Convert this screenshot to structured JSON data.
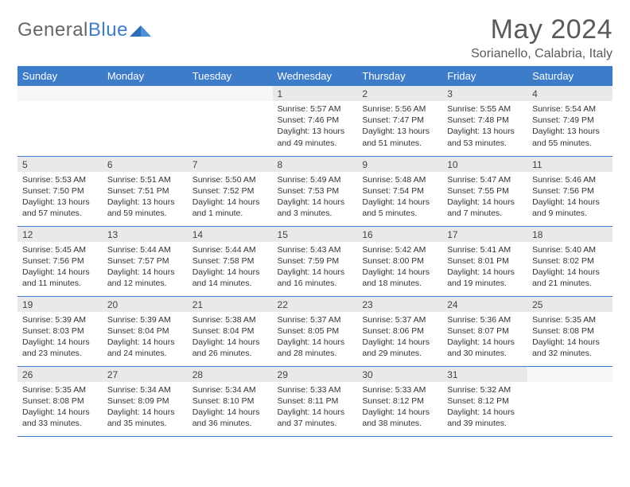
{
  "logo": {
    "text_gray": "General",
    "text_blue": "Blue"
  },
  "title": "May 2024",
  "location": "Sorianello, Calabria, Italy",
  "colors": {
    "header_bg": "#3d7cc9",
    "header_text": "#ffffff",
    "daynum_bg": "#e8e9ea",
    "row_border": "#3d7cc9",
    "body_text": "#333333",
    "title_text": "#5a5a5a"
  },
  "weekdays": [
    "Sunday",
    "Monday",
    "Tuesday",
    "Wednesday",
    "Thursday",
    "Friday",
    "Saturday"
  ],
  "weeks": [
    [
      {
        "n": "",
        "sr": "",
        "ss": "",
        "dl": ""
      },
      {
        "n": "",
        "sr": "",
        "ss": "",
        "dl": ""
      },
      {
        "n": "",
        "sr": "",
        "ss": "",
        "dl": ""
      },
      {
        "n": "1",
        "sr": "5:57 AM",
        "ss": "7:46 PM",
        "dl": "13 hours and 49 minutes."
      },
      {
        "n": "2",
        "sr": "5:56 AM",
        "ss": "7:47 PM",
        "dl": "13 hours and 51 minutes."
      },
      {
        "n": "3",
        "sr": "5:55 AM",
        "ss": "7:48 PM",
        "dl": "13 hours and 53 minutes."
      },
      {
        "n": "4",
        "sr": "5:54 AM",
        "ss": "7:49 PM",
        "dl": "13 hours and 55 minutes."
      }
    ],
    [
      {
        "n": "5",
        "sr": "5:53 AM",
        "ss": "7:50 PM",
        "dl": "13 hours and 57 minutes."
      },
      {
        "n": "6",
        "sr": "5:51 AM",
        "ss": "7:51 PM",
        "dl": "13 hours and 59 minutes."
      },
      {
        "n": "7",
        "sr": "5:50 AM",
        "ss": "7:52 PM",
        "dl": "14 hours and 1 minute."
      },
      {
        "n": "8",
        "sr": "5:49 AM",
        "ss": "7:53 PM",
        "dl": "14 hours and 3 minutes."
      },
      {
        "n": "9",
        "sr": "5:48 AM",
        "ss": "7:54 PM",
        "dl": "14 hours and 5 minutes."
      },
      {
        "n": "10",
        "sr": "5:47 AM",
        "ss": "7:55 PM",
        "dl": "14 hours and 7 minutes."
      },
      {
        "n": "11",
        "sr": "5:46 AM",
        "ss": "7:56 PM",
        "dl": "14 hours and 9 minutes."
      }
    ],
    [
      {
        "n": "12",
        "sr": "5:45 AM",
        "ss": "7:56 PM",
        "dl": "14 hours and 11 minutes."
      },
      {
        "n": "13",
        "sr": "5:44 AM",
        "ss": "7:57 PM",
        "dl": "14 hours and 12 minutes."
      },
      {
        "n": "14",
        "sr": "5:44 AM",
        "ss": "7:58 PM",
        "dl": "14 hours and 14 minutes."
      },
      {
        "n": "15",
        "sr": "5:43 AM",
        "ss": "7:59 PM",
        "dl": "14 hours and 16 minutes."
      },
      {
        "n": "16",
        "sr": "5:42 AM",
        "ss": "8:00 PM",
        "dl": "14 hours and 18 minutes."
      },
      {
        "n": "17",
        "sr": "5:41 AM",
        "ss": "8:01 PM",
        "dl": "14 hours and 19 minutes."
      },
      {
        "n": "18",
        "sr": "5:40 AM",
        "ss": "8:02 PM",
        "dl": "14 hours and 21 minutes."
      }
    ],
    [
      {
        "n": "19",
        "sr": "5:39 AM",
        "ss": "8:03 PM",
        "dl": "14 hours and 23 minutes."
      },
      {
        "n": "20",
        "sr": "5:39 AM",
        "ss": "8:04 PM",
        "dl": "14 hours and 24 minutes."
      },
      {
        "n": "21",
        "sr": "5:38 AM",
        "ss": "8:04 PM",
        "dl": "14 hours and 26 minutes."
      },
      {
        "n": "22",
        "sr": "5:37 AM",
        "ss": "8:05 PM",
        "dl": "14 hours and 28 minutes."
      },
      {
        "n": "23",
        "sr": "5:37 AM",
        "ss": "8:06 PM",
        "dl": "14 hours and 29 minutes."
      },
      {
        "n": "24",
        "sr": "5:36 AM",
        "ss": "8:07 PM",
        "dl": "14 hours and 30 minutes."
      },
      {
        "n": "25",
        "sr": "5:35 AM",
        "ss": "8:08 PM",
        "dl": "14 hours and 32 minutes."
      }
    ],
    [
      {
        "n": "26",
        "sr": "5:35 AM",
        "ss": "8:08 PM",
        "dl": "14 hours and 33 minutes."
      },
      {
        "n": "27",
        "sr": "5:34 AM",
        "ss": "8:09 PM",
        "dl": "14 hours and 35 minutes."
      },
      {
        "n": "28",
        "sr": "5:34 AM",
        "ss": "8:10 PM",
        "dl": "14 hours and 36 minutes."
      },
      {
        "n": "29",
        "sr": "5:33 AM",
        "ss": "8:11 PM",
        "dl": "14 hours and 37 minutes."
      },
      {
        "n": "30",
        "sr": "5:33 AM",
        "ss": "8:12 PM",
        "dl": "14 hours and 38 minutes."
      },
      {
        "n": "31",
        "sr": "5:32 AM",
        "ss": "8:12 PM",
        "dl": "14 hours and 39 minutes."
      },
      {
        "n": "",
        "sr": "",
        "ss": "",
        "dl": ""
      }
    ]
  ],
  "labels": {
    "sunrise": "Sunrise:",
    "sunset": "Sunset:",
    "daylight": "Daylight:"
  }
}
